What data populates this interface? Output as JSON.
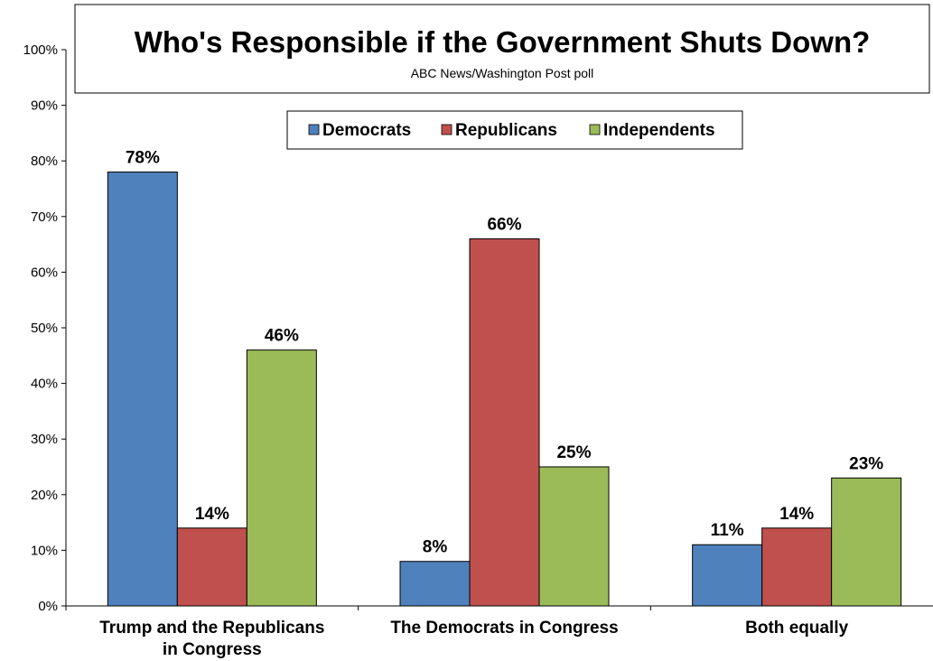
{
  "chart_data": {
    "type": "bar",
    "title": "Who's Responsible if the Government Shuts Down?",
    "subtitle": "ABC News/Washington  Post poll",
    "categories": [
      [
        "Trump and the Republicans",
        "in Congress"
      ],
      [
        "The Democrats in Congress"
      ],
      [
        "Both equally"
      ]
    ],
    "series": [
      {
        "name": "Democrats",
        "color": "#4F81BD",
        "values": [
          78,
          8,
          11
        ],
        "labels": [
          "78%",
          "8%",
          "11%"
        ]
      },
      {
        "name": "Republicans",
        "color": "#C0504D",
        "values": [
          14,
          66,
          14
        ],
        "labels": [
          "14%",
          "66%",
          "14%"
        ]
      },
      {
        "name": "Independents",
        "color": "#9BBB59",
        "values": [
          46,
          25,
          23
        ],
        "labels": [
          "46%",
          "25%",
          "23%"
        ]
      }
    ],
    "yticks": [
      "0%",
      "10%",
      "20%",
      "30%",
      "40%",
      "50%",
      "60%",
      "70%",
      "80%",
      "90%",
      "100%"
    ],
    "ylim": [
      0,
      100
    ],
    "grid": false,
    "legend_position": "top-center"
  }
}
